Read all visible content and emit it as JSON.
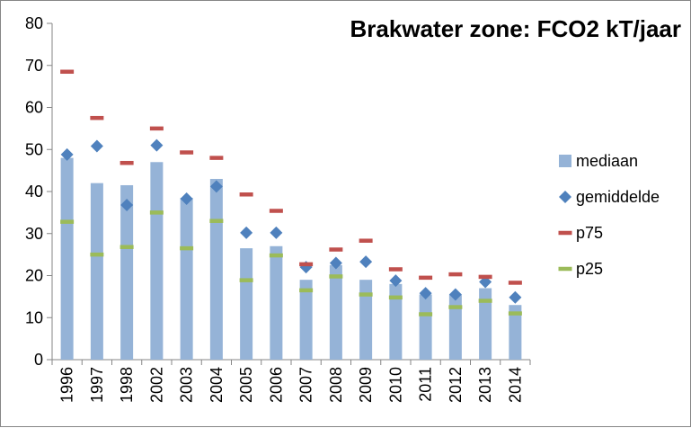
{
  "chart_data": {
    "type": "bar",
    "title": "Brakwater zone: FCO2 kT/jaar",
    "xlabel": "",
    "ylabel": "",
    "ylim": [
      0,
      80
    ],
    "yticks": [
      "0",
      "10",
      "20",
      "30",
      "40",
      "50",
      "60",
      "70",
      "80"
    ],
    "categories": [
      "1996",
      "1997",
      "1998",
      "2002",
      "2003",
      "2004",
      "2005",
      "2006",
      "2007",
      "2008",
      "2009",
      "2010",
      "2011",
      "2012",
      "2013",
      "2014"
    ],
    "grid": false,
    "legend_position": "right",
    "series": [
      {
        "name": "mediaan",
        "kind": "bar",
        "color": "#95b3d7",
        "values": [
          48,
          42,
          41.5,
          47,
          38.5,
          43,
          26.5,
          27,
          19,
          22.5,
          19,
          18,
          15.5,
          15.5,
          17,
          13
        ]
      },
      {
        "name": "gemiddelde",
        "kind": "diamond",
        "color": "#4f81bd",
        "values": [
          48.8,
          50.8,
          36.8,
          51,
          38.3,
          41.2,
          30.2,
          30.2,
          22,
          23,
          23.3,
          18.8,
          15.8,
          15.5,
          18.5,
          14.8
        ]
      },
      {
        "name": "p75",
        "kind": "dash",
        "color": "#c0504d",
        "values": [
          68.5,
          57.5,
          46.8,
          55,
          49.3,
          48,
          39.3,
          35.4,
          22.7,
          26.2,
          28.3,
          21.5,
          19.5,
          20.3,
          19.7,
          18.3
        ]
      },
      {
        "name": "p25",
        "kind": "dash",
        "color": "#9bbb59",
        "values": [
          32.8,
          25,
          26.8,
          35,
          26.5,
          33,
          18.9,
          24.8,
          16.5,
          19.8,
          15.5,
          14.8,
          10.8,
          12.5,
          14,
          11
        ]
      }
    ]
  }
}
